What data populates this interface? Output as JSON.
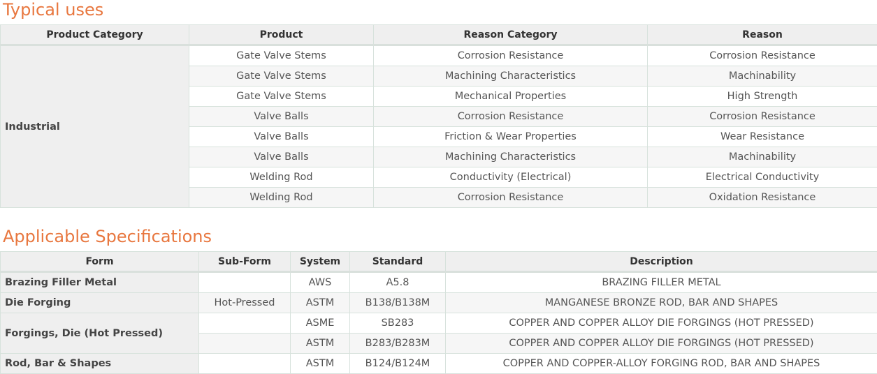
{
  "uses": {
    "title": "Typical uses",
    "headers": [
      "Product Category",
      "Product",
      "Reason Category",
      "Reason"
    ],
    "category": "Industrial",
    "rows": [
      [
        "Gate Valve Stems",
        "Corrosion Resistance",
        "Corrosion Resistance"
      ],
      [
        "Gate Valve Stems",
        "Machining Characteristics",
        "Machinability"
      ],
      [
        "Gate Valve Stems",
        "Mechanical Properties",
        "High Strength"
      ],
      [
        "Valve Balls",
        "Corrosion Resistance",
        "Corrosion Resistance"
      ],
      [
        "Valve Balls",
        "Friction & Wear Properties",
        "Wear Resistance"
      ],
      [
        "Valve Balls",
        "Machining Characteristics",
        "Machinability"
      ],
      [
        "Welding Rod",
        "Conductivity (Electrical)",
        "Electrical Conductivity"
      ],
      [
        "Welding Rod",
        "Corrosion Resistance",
        "Oxidation Resistance"
      ]
    ]
  },
  "specs": {
    "title": "Applicable Specifications",
    "headers": [
      "Form",
      "Sub-Form",
      "System",
      "Standard",
      "Description"
    ],
    "forms": [
      "Brazing Filler Metal",
      "Die Forging",
      "Forgings, Die (Hot Pressed)",
      "Rod, Bar & Shapes"
    ],
    "rows": [
      [
        "",
        "AWS",
        "A5.8",
        "BRAZING FILLER METAL"
      ],
      [
        "Hot-Pressed",
        "ASTM",
        "B138/B138M",
        "MANGANESE BRONZE ROD, BAR AND SHAPES"
      ],
      [
        "",
        "ASME",
        "SB283",
        "COPPER AND COPPER ALLOY DIE FORGINGS (HOT PRESSED)"
      ],
      [
        "",
        "ASTM",
        "B283/B283M",
        "COPPER AND COPPER ALLOY DIE FORGINGS (HOT PRESSED)"
      ],
      [
        "",
        "ASTM",
        "B124/B124M",
        "COPPER AND COPPER-ALLOY FORGING ROD, BAR AND SHAPES"
      ]
    ]
  }
}
